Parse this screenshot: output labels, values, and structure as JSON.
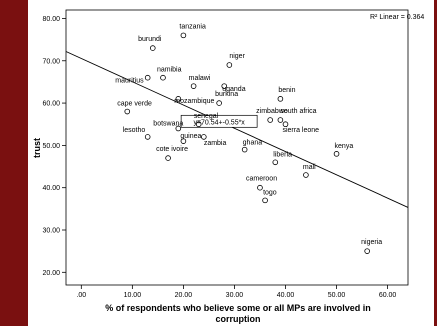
{
  "chart_data": {
    "type": "scatter",
    "xlabel_line1": "% of respondents who believe some or all MPs are involved in",
    "xlabel_line2": "corruption",
    "ylabel": "trust",
    "xlim": [
      -3,
      64
    ],
    "ylim": [
      17,
      82
    ],
    "x_ticks": [
      ".00",
      "10.00",
      "20.00",
      "30.00",
      "40.00",
      "50.00",
      "60.00"
    ],
    "x_tick_values": [
      0,
      10,
      20,
      30,
      40,
      50,
      60
    ],
    "y_ticks": [
      "20.00",
      "30.00",
      "40.00",
      "50.00",
      "60.00",
      "70.00",
      "80.00"
    ],
    "y_tick_values": [
      20,
      30,
      40,
      50,
      60,
      70,
      80
    ],
    "grid": false,
    "r_squared_label": "R² Linear = 0.364",
    "equation_label": "y=70.54+-0.55*x",
    "fit_line": {
      "intercept": 70.54,
      "slope": -0.55
    },
    "points": [
      {
        "name": "tanzania",
        "x": 20,
        "y": 76
      },
      {
        "name": "burundi",
        "x": 14,
        "y": 73
      },
      {
        "name": "niger",
        "x": 29,
        "y": 69
      },
      {
        "name": "namibia",
        "x": 16,
        "y": 66
      },
      {
        "name": "mauritius",
        "x": 13,
        "y": 66
      },
      {
        "name": "malawi",
        "x": 22,
        "y": 64
      },
      {
        "name": "uganda",
        "x": 28,
        "y": 64
      },
      {
        "name": "benin",
        "x": 39,
        "y": 61
      },
      {
        "name": "burkina",
        "x": 27,
        "y": 60
      },
      {
        "name": "cape verde",
        "x": 9,
        "y": 58
      },
      {
        "name": "mozambique",
        "x": 19,
        "y": 61
      },
      {
        "name": "senegal",
        "x": 23,
        "y": 55
      },
      {
        "name": "zimbabwe",
        "x": 37,
        "y": 56
      },
      {
        "name": "south africa",
        "x": 39,
        "y": 56
      },
      {
        "name": "botswana",
        "x": 19,
        "y": 54
      },
      {
        "name": "sierra leone",
        "x": 40,
        "y": 55
      },
      {
        "name": "lesotho",
        "x": 13,
        "y": 52
      },
      {
        "name": "guinea",
        "x": 20,
        "y": 51
      },
      {
        "name": "zambia",
        "x": 24,
        "y": 52
      },
      {
        "name": "ghana",
        "x": 32,
        "y": 49
      },
      {
        "name": "kenya",
        "x": 50,
        "y": 48
      },
      {
        "name": "cote ivoire",
        "x": 17,
        "y": 47
      },
      {
        "name": "liberia",
        "x": 38,
        "y": 46
      },
      {
        "name": "mali",
        "x": 44,
        "y": 43
      },
      {
        "name": "cameroon",
        "x": 35,
        "y": 40
      },
      {
        "name": "togo",
        "x": 36,
        "y": 37
      },
      {
        "name": "nigeria",
        "x": 56,
        "y": 25
      }
    ]
  }
}
